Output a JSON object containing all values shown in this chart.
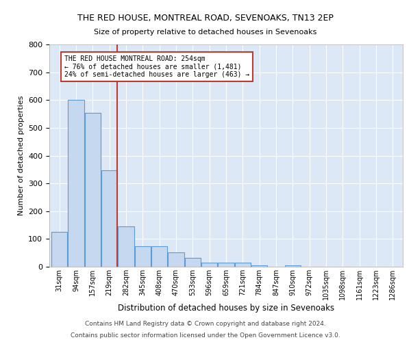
{
  "title1": "THE RED HOUSE, MONTREAL ROAD, SEVENOAKS, TN13 2EP",
  "title2": "Size of property relative to detached houses in Sevenoaks",
  "xlabel": "Distribution of detached houses by size in Sevenoaks",
  "ylabel": "Number of detached properties",
  "categories": [
    "31sqm",
    "94sqm",
    "157sqm",
    "219sqm",
    "282sqm",
    "345sqm",
    "408sqm",
    "470sqm",
    "533sqm",
    "596sqm",
    "659sqm",
    "721sqm",
    "784sqm",
    "847sqm",
    "910sqm",
    "972sqm",
    "1035sqm",
    "1098sqm",
    "1161sqm",
    "1223sqm",
    "1286sqm"
  ],
  "values": [
    125,
    600,
    555,
    348,
    145,
    75,
    75,
    52,
    32,
    15,
    15,
    15,
    5,
    0,
    5,
    0,
    0,
    0,
    0,
    0,
    0
  ],
  "bar_color": "#c5d8f0",
  "bar_edge_color": "#5b9bd5",
  "vline_pos": 3.475,
  "vline_color": "#c0392b",
  "annotation_title": "THE RED HOUSE MONTREAL ROAD: 254sqm",
  "annotation_line1": "← 76% of detached houses are smaller (1,481)",
  "annotation_line2": "24% of semi-detached houses are larger (463) →",
  "annotation_box_color": "#c0392b",
  "ylim": [
    0,
    800
  ],
  "yticks": [
    0,
    100,
    200,
    300,
    400,
    500,
    600,
    700,
    800
  ],
  "footer1": "Contains HM Land Registry data © Crown copyright and database right 2024.",
  "footer2": "Contains public sector information licensed under the Open Government Licence v3.0."
}
